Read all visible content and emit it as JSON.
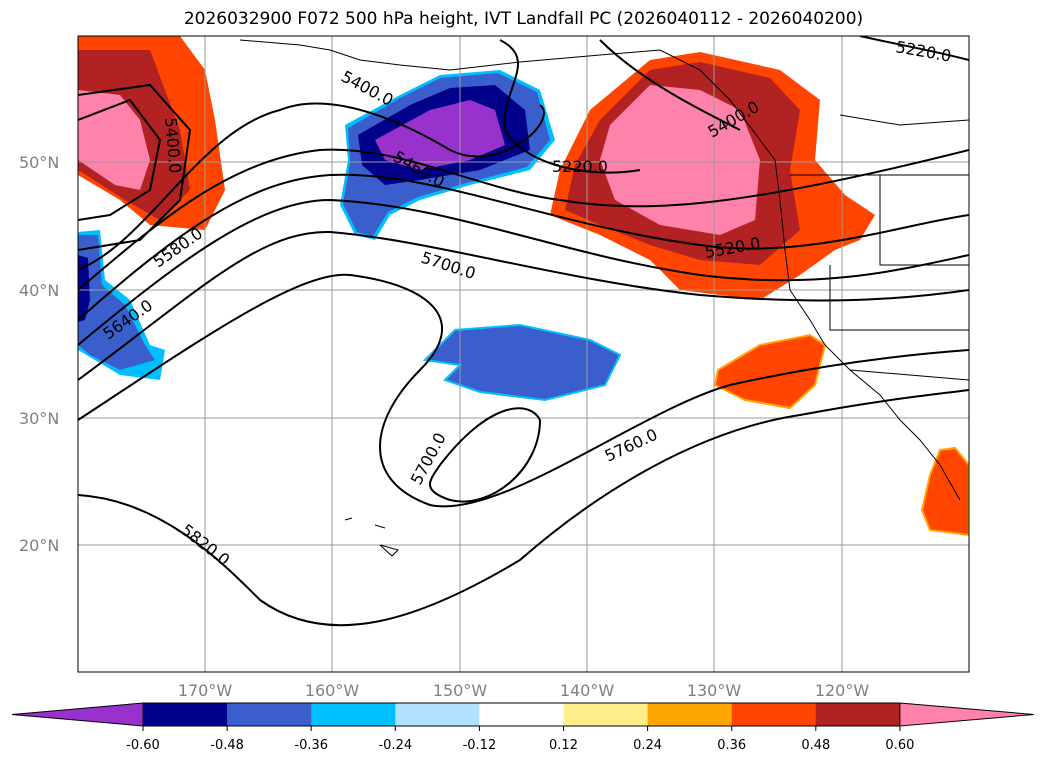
{
  "title": "2026032900 F072 500 hPa height, IVT Landfall PC (2026040112 - 2026040200)",
  "map": {
    "lat_labels": [
      "50°N",
      "40°N",
      "30°N",
      "20°N"
    ],
    "lon_labels": [
      "170°W",
      "160°W",
      "150°W",
      "140°W",
      "130°W",
      "120°W"
    ],
    "extent": {
      "lon_min": -180,
      "lon_max": -110,
      "lat_min": 10,
      "lat_max": 60
    },
    "contour_labels": [
      "5220.0",
      "5400.0",
      "5400.0",
      "5460.0",
      "5220.0",
      "5400.0",
      "5520.0",
      "5580.0",
      "5640.0",
      "5700.0",
      "5700.0",
      "5760.0",
      "5820.0"
    ]
  },
  "colorbar": {
    "ticks": [
      "-0.60",
      "-0.48",
      "-0.36",
      "-0.24",
      "-0.12",
      "0.12",
      "0.24",
      "0.36",
      "0.48",
      "0.60"
    ],
    "colors": [
      "#9932CC",
      "#00008B",
      "#3A5FCD",
      "#00BFFF",
      "#B0E2FF",
      "#FFFFFF",
      "#FFEC8B",
      "#FFA500",
      "#FF4500",
      "#B22222",
      "#FF82AB"
    ]
  }
}
